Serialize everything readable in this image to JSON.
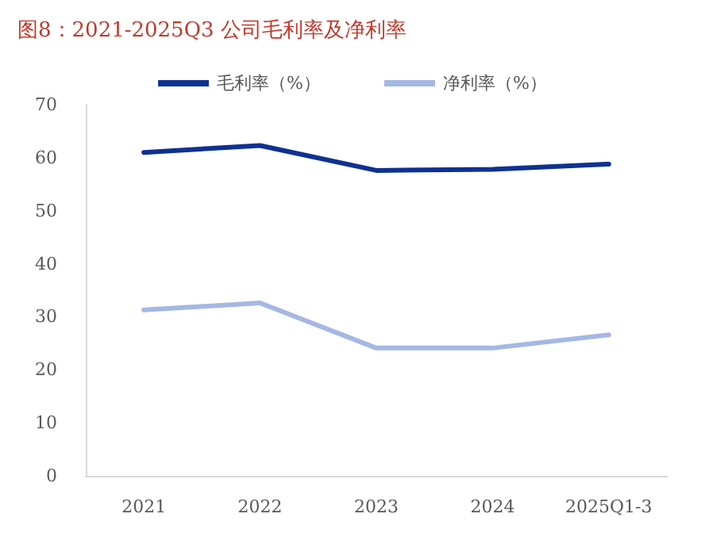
{
  "chart_data": {
    "type": "line",
    "title": "图8：2021-2025Q3 公司毛利率及净利率",
    "categories": [
      "2021",
      "2022",
      "2023",
      "2024",
      "2025Q1-3"
    ],
    "series": [
      {
        "name": "毛利率（%）",
        "color": "#0e3191",
        "values": [
          61.0,
          62.3,
          57.6,
          57.8,
          58.8
        ]
      },
      {
        "name": "净利率（%）",
        "color": "#a5b8e3",
        "values": [
          31.3,
          32.6,
          24.1,
          24.1,
          26.6
        ]
      }
    ],
    "ylim": [
      0,
      70
    ],
    "yticks": [
      0,
      10,
      20,
      30,
      40,
      50,
      60,
      70
    ],
    "grid": false,
    "legend": "top",
    "marker": "none",
    "line_style": "solid"
  }
}
